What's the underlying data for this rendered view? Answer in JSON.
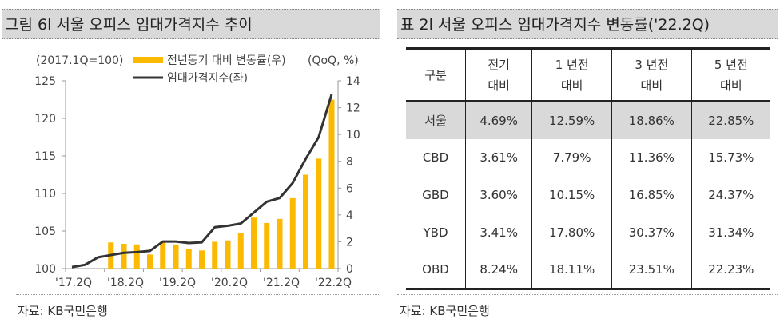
{
  "left_panel": {
    "title": "그림 6l 서울 오피스 임대가격지수 추이",
    "source": "자료: KB국민은행"
  },
  "right_panel": {
    "title": "표 2l 서울 오피스 임대가격지수 변동률('22.2Q)",
    "source": "자료: KB국민은행",
    "table": {
      "headers": [
        [
          "구분"
        ],
        [
          "전기",
          "대비"
        ],
        [
          "1 년전",
          "대비"
        ],
        [
          "3 년전",
          "대비"
        ],
        [
          "5 년전",
          "대비"
        ]
      ],
      "rows": [
        {
          "label": "서울",
          "values": [
            "4.69%",
            "12.59%",
            "18.86%",
            "22.85%"
          ],
          "highlight": true
        },
        {
          "label": "CBD",
          "values": [
            "3.61%",
            "7.79%",
            "11.36%",
            "15.73%"
          ]
        },
        {
          "label": "GBD",
          "values": [
            "3.60%",
            "10.15%",
            "16.85%",
            "24.37%"
          ]
        },
        {
          "label": "YBD",
          "values": [
            "3.41%",
            "17.80%",
            "30.37%",
            "31.34%"
          ]
        },
        {
          "label": "OBD",
          "values": [
            "8.24%",
            "18.11%",
            "23.51%",
            "22.23%"
          ]
        }
      ]
    }
  },
  "chart_data": {
    "type": "bar+line",
    "left_axis_note": "(2017.1Q=100)",
    "right_axis_note": "(QoQ, %)",
    "x": [
      "17.2Q",
      "17.3Q",
      "17.4Q",
      "18.1Q",
      "18.2Q",
      "18.3Q",
      "18.4Q",
      "19.1Q",
      "19.2Q",
      "19.3Q",
      "19.4Q",
      "20.1Q",
      "20.2Q",
      "20.3Q",
      "20.4Q",
      "21.1Q",
      "21.2Q",
      "21.3Q",
      "21.4Q",
      "22.1Q",
      "22.2Q"
    ],
    "xtick_labels": [
      "'17.2Q",
      "'18.2Q",
      "'19.2Q",
      "'20.2Q",
      "'21.2Q",
      "'22.2Q"
    ],
    "ylim_left": [
      100,
      125
    ],
    "yticks_left": [
      "100",
      "105",
      "110",
      "115",
      "120",
      "125"
    ],
    "ylim_right": [
      0,
      14
    ],
    "yticks_right": [
      "0",
      "2",
      "4",
      "6",
      "8",
      "10",
      "12",
      "14"
    ],
    "legend": "top",
    "grid": false,
    "series": [
      {
        "name": "전년동기 대비 변동률(우)",
        "type": "bar",
        "axis": "right",
        "color": "#fbb900",
        "values": [
          null,
          null,
          null,
          1.95,
          1.85,
          1.8,
          1.05,
          2.0,
          1.8,
          1.45,
          1.35,
          2.0,
          2.1,
          2.65,
          3.8,
          3.4,
          3.7,
          5.25,
          7.0,
          8.2,
          12.59
        ]
      },
      {
        "name": "임대가격지수(좌)",
        "type": "line",
        "axis": "left",
        "color": "#333333",
        "values": [
          100.2,
          100.5,
          101.5,
          101.8,
          102.1,
          102.2,
          102.35,
          103.6,
          103.6,
          103.4,
          103.5,
          105.5,
          105.7,
          106.0,
          107.45,
          108.9,
          109.4,
          111.4,
          114.6,
          117.5,
          123.2
        ]
      }
    ]
  }
}
